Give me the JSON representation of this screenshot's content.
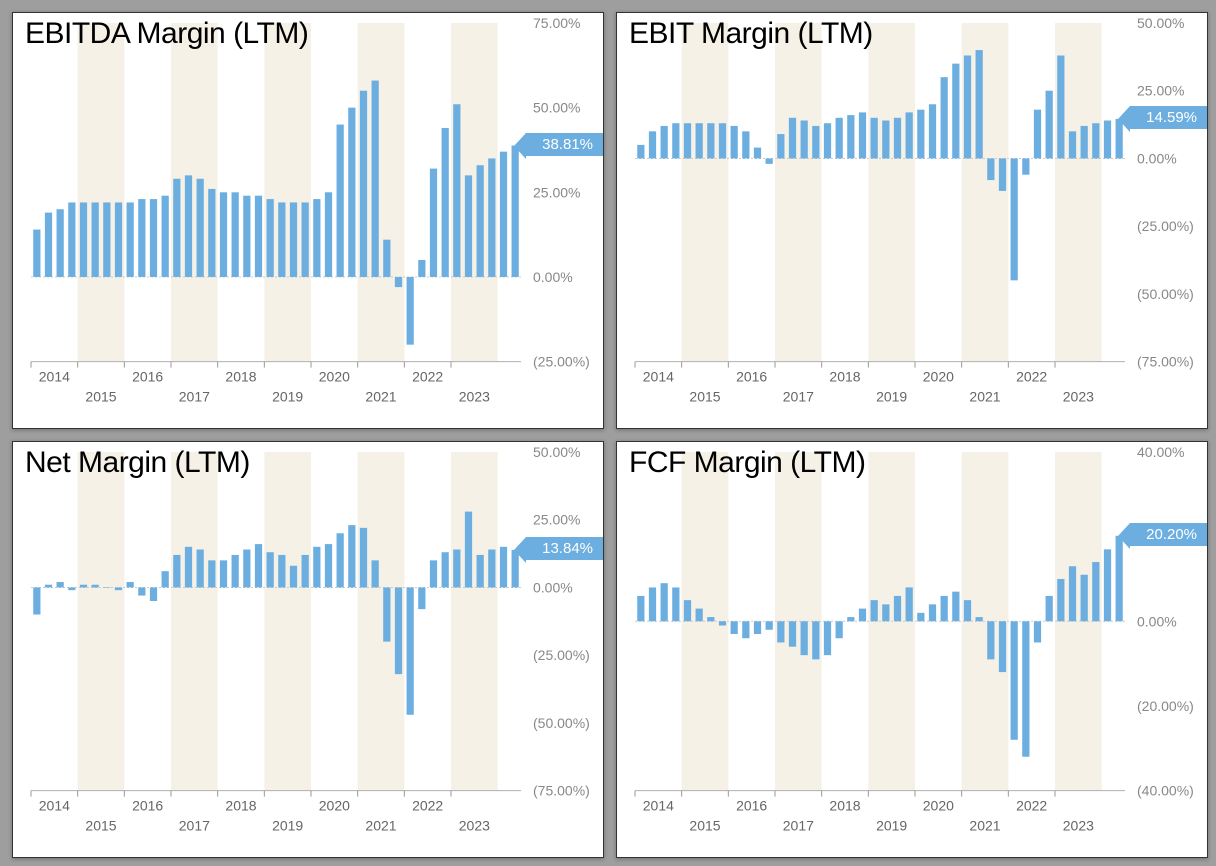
{
  "background_color": "#9e9e9e",
  "panel_bg": "#ffffff",
  "bar_color": "#6caedf",
  "stripe_color": "#f5f1e6",
  "grid_color": "#e0e0e0",
  "tick_color": "#888888",
  "title_fontsize": 30,
  "tick_fontsize": 14,
  "x_years": [
    2014,
    2015,
    2016,
    2017,
    2018,
    2019,
    2020,
    2021,
    2022,
    2023
  ],
  "charts": [
    {
      "id": "ebitda",
      "title": "EBITDA Margin (LTM)",
      "callout": "38.81%",
      "ylim": [
        -25,
        75
      ],
      "ytick_step": 25,
      "yticks": [
        -25,
        0,
        25,
        50,
        75
      ],
      "ytick_labels": [
        "(25.00%)",
        "0.00%",
        "25.00%",
        "50.00%",
        "75.00%"
      ],
      "values": [
        14,
        19,
        20,
        22,
        22,
        22,
        22,
        22,
        22,
        23,
        23,
        24,
        29,
        30,
        29,
        26,
        25,
        25,
        24,
        24,
        23,
        22,
        22,
        22,
        23,
        25,
        45,
        50,
        55,
        58,
        11,
        -3,
        -20,
        5,
        32,
        44,
        51,
        30,
        33,
        35,
        37,
        38.81
      ]
    },
    {
      "id": "ebit",
      "title": "EBIT Margin (LTM)",
      "callout": "14.59%",
      "ylim": [
        -75,
        50
      ],
      "ytick_step": 25,
      "yticks": [
        -75,
        -50,
        -25,
        0,
        25,
        50
      ],
      "ytick_labels": [
        "(75.00%)",
        "(50.00%)",
        "(25.00%)",
        "0.00%",
        "25.00%",
        "50.00%"
      ],
      "values": [
        5,
        10,
        12,
        13,
        13,
        13,
        13,
        13,
        12,
        10,
        4,
        -2,
        9,
        15,
        14,
        12,
        13,
        15,
        16,
        17,
        15,
        14,
        15,
        17,
        18,
        20,
        30,
        35,
        38,
        40,
        -8,
        -12,
        -45,
        -6,
        18,
        25,
        38,
        10,
        12,
        13,
        14,
        14.59
      ]
    },
    {
      "id": "net",
      "title": "Net Margin (LTM)",
      "callout": "13.84%",
      "ylim": [
        -75,
        50
      ],
      "ytick_step": 25,
      "yticks": [
        -75,
        -50,
        -25,
        0,
        25,
        50
      ],
      "ytick_labels": [
        "(75.00%)",
        "(50.00%)",
        "(25.00%)",
        "0.00%",
        "25.00%",
        "50.00%"
      ],
      "values": [
        -10,
        1,
        2,
        -1,
        1,
        1,
        0,
        -1,
        2,
        -3,
        -5,
        6,
        12,
        15,
        14,
        10,
        10,
        12,
        14,
        16,
        13,
        12,
        8,
        12,
        15,
        16,
        20,
        23,
        22,
        10,
        -20,
        -32,
        -47,
        -8,
        10,
        13,
        14,
        28,
        12,
        14,
        15,
        13.84
      ]
    },
    {
      "id": "fcf",
      "title": "FCF Margin (LTM)",
      "callout": "20.20%",
      "ylim": [
        -40,
        40
      ],
      "ytick_step": 20,
      "yticks": [
        -40,
        -20,
        0,
        20,
        40
      ],
      "ytick_labels": [
        "(40.00%)",
        "(20.00%)",
        "0.00%",
        "20.00%",
        "40.00%"
      ],
      "values": [
        6,
        8,
        9,
        8,
        5,
        3,
        1,
        -1,
        -3,
        -4,
        -3,
        -2,
        -5,
        -6,
        -8,
        -9,
        -8,
        -4,
        1,
        3,
        5,
        4,
        6,
        8,
        2,
        4,
        6,
        7,
        5,
        1,
        -9,
        -12,
        -28,
        -32,
        -5,
        6,
        10,
        13,
        11,
        14,
        17,
        20.2
      ]
    }
  ]
}
